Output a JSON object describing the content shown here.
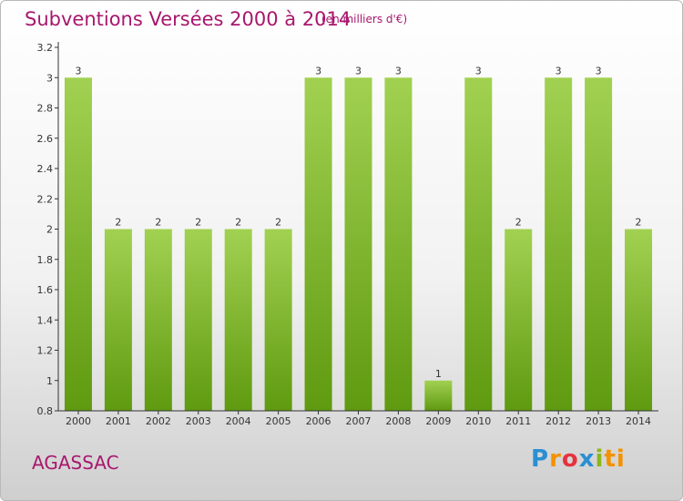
{
  "header": {
    "title": "Subventions Versées 2000 à 2014",
    "unit": "(en milliers d'€)"
  },
  "footer": {
    "place": "AGASSAC",
    "logo_letters": [
      "P",
      "r",
      "o",
      "x",
      "i",
      "ti"
    ]
  },
  "colors": {
    "title": "#a8176d",
    "bar_light": "#a2d152",
    "bar_dark": "#5f9a10",
    "axis": "#333333"
  },
  "chart_data": {
    "type": "bar",
    "title": "Subventions Versées 2000 à 2014",
    "subtitle": "(en milliers d'€)",
    "categories": [
      "2000",
      "2001",
      "2002",
      "2003",
      "2004",
      "2005",
      "2006",
      "2007",
      "2008",
      "2009",
      "2010",
      "2011",
      "2012",
      "2013",
      "2014"
    ],
    "values": [
      3,
      2,
      2,
      2,
      2,
      2,
      3,
      3,
      3,
      1,
      3,
      2,
      3,
      3,
      2
    ],
    "data_labels": [
      "3",
      "2",
      "2",
      "2",
      "2",
      "2",
      "3",
      "3",
      "3",
      "1",
      "3",
      "2",
      "3",
      "3",
      "2"
    ],
    "ylim": [
      0.8,
      3.2
    ],
    "yticks": [
      0.8,
      1,
      1.2,
      1.4,
      1.6,
      1.8,
      2,
      2.2,
      2.4,
      2.6,
      2.8,
      3,
      3.2
    ],
    "ytick_labels": [
      "0.8",
      "1",
      "1.2",
      "1.4",
      "1.6",
      "1.8",
      "2",
      "2.2",
      "2.4",
      "2.6",
      "2.8",
      "3",
      "3.2"
    ],
    "xlabel": "",
    "ylabel": "",
    "grid": false,
    "legend": "none"
  }
}
